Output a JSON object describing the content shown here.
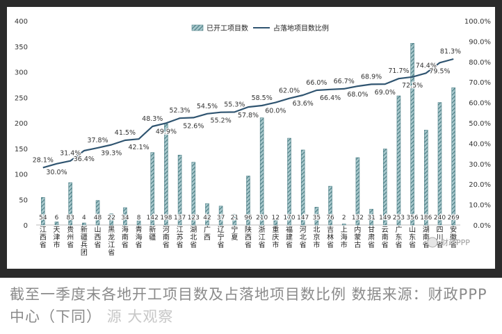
{
  "chart_data": {
    "type": "bar+line",
    "categories": [
      "江西省",
      "天津市",
      "贵州省",
      "新疆兵团",
      "山西省",
      "黑龙江省",
      "海南省",
      "青海省",
      "新疆",
      "河南省",
      "江苏省",
      "湖北省",
      "广西",
      "辽宁省",
      "宁夏",
      "陕西省",
      "浙江省",
      "重庆市",
      "福建省",
      "河北省",
      "北京市",
      "吉林省",
      "上海市",
      "内蒙古",
      "甘肃省",
      "云南省",
      "广东省",
      "山东省",
      "湖南省",
      "四川省",
      "安徽省"
    ],
    "series": [
      {
        "name": "已开工项目数",
        "kind": "bar",
        "axis": "left",
        "values": [
          54,
          6,
          83,
          4,
          48,
          22,
          34,
          8,
          142,
          198,
          137,
          123,
          42,
          37,
          21,
          96,
          210,
          12,
          170,
          147,
          35,
          76,
          2,
          132,
          31,
          149,
          253,
          356,
          186,
          240,
          269
        ]
      },
      {
        "name": "占落地项目数比例",
        "kind": "line",
        "axis": "right",
        "values": [
          28.1,
          30.0,
          31.4,
          36.4,
          37.8,
          39.3,
          41.5,
          42.1,
          48.3,
          49.9,
          52.3,
          52.6,
          54.5,
          55.2,
          55.3,
          57.8,
          58.5,
          60.0,
          62.0,
          63.6,
          66.0,
          66.4,
          66.7,
          68.0,
          68.9,
          69.0,
          71.7,
          72.5,
          74.4,
          79.5,
          81.3
        ]
      }
    ],
    "y_left": {
      "min": 0,
      "max": 400,
      "step": 50,
      "ticks": [
        "0",
        "50",
        "100",
        "150",
        "200",
        "250",
        "300",
        "350",
        "400"
      ]
    },
    "y_right": {
      "min": 0,
      "max": 100,
      "step": 10,
      "ticks": [
        "0.0%",
        "10.0%",
        "20.0%",
        "30.0%",
        "40.0%",
        "50.0%",
        "60.0%",
        "70.0%",
        "80.0%",
        "90.0%",
        "100.0%"
      ]
    },
    "legend": {
      "position": "top-right",
      "bar_label": "已开工项目数",
      "line_label": "占落地项目数比例"
    },
    "grid": false,
    "colors": {
      "bar": "#4d7f86",
      "bar_hatch": "#a8c8cc",
      "line": "#2f5470",
      "frame": "#2b2b2b"
    }
  },
  "watermark": "财政PPP",
  "caption": {
    "text": "截至一季度末各地开工项目数及占落地项目数比例 数据来源：财政PPP中心（下同）",
    "overlay": "源 大观察"
  }
}
